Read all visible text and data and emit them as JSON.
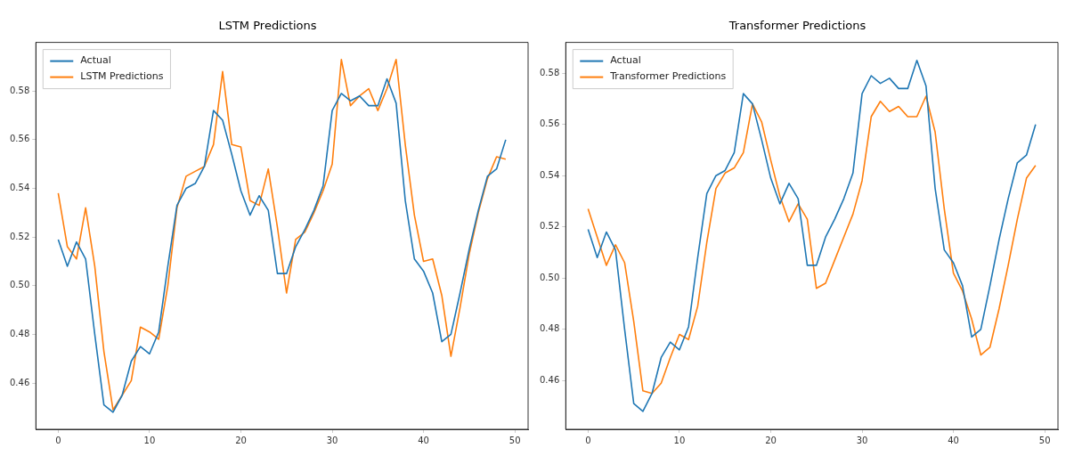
{
  "chart_data": [
    {
      "type": "line",
      "title": "LSTM Predictions",
      "x": [
        0,
        1,
        2,
        3,
        4,
        5,
        6,
        7,
        8,
        9,
        10,
        11,
        12,
        13,
        14,
        15,
        16,
        17,
        18,
        19,
        20,
        21,
        22,
        23,
        24,
        25,
        26,
        27,
        28,
        29,
        30,
        31,
        32,
        33,
        34,
        35,
        36,
        37,
        38,
        39,
        40,
        41,
        42,
        43,
        44,
        45,
        46,
        47,
        48,
        49
      ],
      "series": [
        {
          "name": "Actual",
          "color": "#1f77b4",
          "values": [
            0.519,
            0.508,
            0.518,
            0.511,
            0.48,
            0.451,
            0.448,
            0.455,
            0.469,
            0.475,
            0.472,
            0.481,
            0.508,
            0.533,
            0.54,
            0.542,
            0.549,
            0.572,
            0.568,
            0.554,
            0.539,
            0.529,
            0.537,
            0.531,
            0.505,
            0.505,
            0.516,
            0.523,
            0.531,
            0.541,
            0.572,
            0.579,
            0.576,
            0.578,
            0.574,
            0.574,
            0.585,
            0.575,
            0.535,
            0.511,
            0.506,
            0.497,
            0.477,
            0.48,
            0.497,
            0.515,
            0.531,
            0.545,
            0.548,
            0.56
          ]
        },
        {
          "name": "LSTM Predictions",
          "color": "#ff7f0e",
          "values": [
            0.538,
            0.516,
            0.511,
            0.532,
            0.508,
            0.473,
            0.449,
            0.455,
            0.461,
            0.483,
            0.481,
            0.478,
            0.5,
            0.532,
            0.545,
            0.547,
            0.549,
            0.558,
            0.588,
            0.558,
            0.557,
            0.535,
            0.533,
            0.548,
            0.524,
            0.497,
            0.519,
            0.522,
            0.53,
            0.539,
            0.55,
            0.593,
            0.574,
            0.578,
            0.581,
            0.572,
            0.581,
            0.593,
            0.558,
            0.529,
            0.51,
            0.511,
            0.496,
            0.471,
            0.491,
            0.513,
            0.53,
            0.544,
            0.553,
            0.552
          ]
        }
      ],
      "xlim": [
        -2.45,
        51.45
      ],
      "xticks": [
        0,
        10,
        20,
        30,
        40,
        50
      ],
      "ylim": [
        0.441,
        0.6
      ],
      "yticks": [
        0.46,
        0.48,
        {
          "value": 0.5,
          "label": "0.50"
        },
        0.52,
        0.54,
        0.56,
        0.58
      ],
      "legend": "top left",
      "grid": false
    },
    {
      "type": "line",
      "title": "Transformer Predictions",
      "x": [
        0,
        1,
        2,
        3,
        4,
        5,
        6,
        7,
        8,
        9,
        10,
        11,
        12,
        13,
        14,
        15,
        16,
        17,
        18,
        19,
        20,
        21,
        22,
        23,
        24,
        25,
        26,
        27,
        28,
        29,
        30,
        31,
        32,
        33,
        34,
        35,
        36,
        37,
        38,
        39,
        40,
        41,
        42,
        43,
        44,
        45,
        46,
        47,
        48,
        49
      ],
      "series": [
        {
          "name": "Actual",
          "color": "#1f77b4",
          "values": [
            0.519,
            0.508,
            0.518,
            0.511,
            0.48,
            0.451,
            0.448,
            0.455,
            0.469,
            0.475,
            0.472,
            0.481,
            0.508,
            0.533,
            0.54,
            0.542,
            0.549,
            0.572,
            0.568,
            0.554,
            0.539,
            0.529,
            0.537,
            0.531,
            0.505,
            0.505,
            0.516,
            0.523,
            0.531,
            0.541,
            0.572,
            0.579,
            0.576,
            0.578,
            0.574,
            0.574,
            0.585,
            0.575,
            0.535,
            0.511,
            0.506,
            0.497,
            0.477,
            0.48,
            0.497,
            0.515,
            0.531,
            0.545,
            0.548,
            0.56
          ]
        },
        {
          "name": "Transformer Predictions",
          "color": "#ff7f0e",
          "values": [
            0.527,
            0.516,
            0.505,
            0.513,
            0.506,
            0.483,
            0.456,
            0.455,
            0.459,
            0.469,
            0.478,
            0.476,
            0.489,
            0.514,
            0.535,
            0.541,
            0.543,
            0.549,
            0.568,
            0.561,
            0.546,
            0.532,
            0.522,
            0.529,
            0.523,
            0.496,
            0.498,
            0.507,
            0.516,
            0.525,
            0.538,
            0.563,
            0.569,
            0.565,
            0.567,
            0.563,
            0.563,
            0.571,
            0.557,
            0.527,
            0.502,
            0.495,
            0.484,
            0.47,
            0.473,
            0.488,
            0.505,
            0.523,
            0.539,
            0.544
          ]
        }
      ],
      "xlim": [
        -2.45,
        51.45
      ],
      "xticks": [
        0,
        10,
        20,
        30,
        40,
        50
      ],
      "ylim": [
        0.441,
        0.592
      ],
      "yticks": [
        0.46,
        0.48,
        {
          "value": 0.5,
          "label": "0.50"
        },
        0.52,
        0.54,
        0.56,
        0.58
      ],
      "legend": "top left",
      "grid": false
    }
  ]
}
